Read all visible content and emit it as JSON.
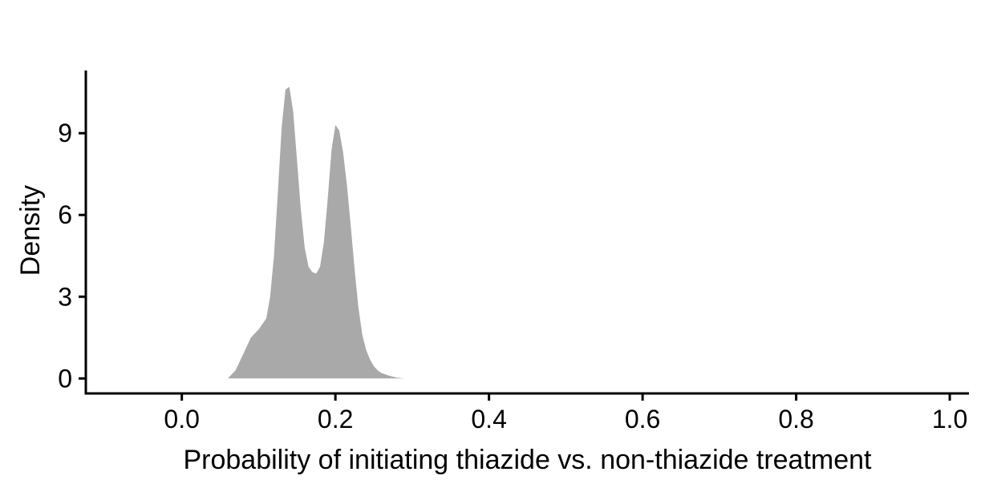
{
  "chart_data": {
    "type": "area",
    "title": "",
    "xlabel": "Probability of initiating thiazide vs. non-thiazide treatment",
    "ylabel": "Density",
    "xlim": [
      -0.125,
      1.025
    ],
    "ylim": [
      -0.55,
      11.3
    ],
    "x_ticks": [
      0.0,
      0.2,
      0.4,
      0.6,
      0.8,
      1.0
    ],
    "x_tick_labels": [
      "0.0",
      "0.2",
      "0.4",
      "0.6",
      "0.8",
      "1.0"
    ],
    "y_ticks": [
      0,
      3,
      6,
      9
    ],
    "y_tick_labels": [
      "0",
      "3",
      "6",
      "9"
    ],
    "grid": false,
    "legend": "none",
    "fill_color": "#a9a9a9",
    "series": [
      {
        "x": [
          0.06,
          0.07,
          0.08,
          0.09,
          0.1,
          0.11,
          0.115,
          0.12,
          0.125,
          0.13,
          0.135,
          0.14,
          0.145,
          0.15,
          0.155,
          0.16,
          0.165,
          0.17,
          0.175,
          0.18,
          0.185,
          0.19,
          0.195,
          0.2,
          0.205,
          0.21,
          0.215,
          0.22,
          0.225,
          0.23,
          0.235,
          0.24,
          0.245,
          0.25,
          0.255,
          0.26,
          0.27,
          0.28,
          0.29
        ],
        "y": [
          0.0,
          0.3,
          0.9,
          1.5,
          1.8,
          2.2,
          3.0,
          4.5,
          6.8,
          9.2,
          10.6,
          10.7,
          9.8,
          8.0,
          6.2,
          4.8,
          4.1,
          3.9,
          3.85,
          4.1,
          5.0,
          6.6,
          8.4,
          9.3,
          9.1,
          8.3,
          7.1,
          5.6,
          4.0,
          2.6,
          1.6,
          1.05,
          0.7,
          0.45,
          0.3,
          0.2,
          0.1,
          0.03,
          0.0
        ]
      }
    ]
  }
}
